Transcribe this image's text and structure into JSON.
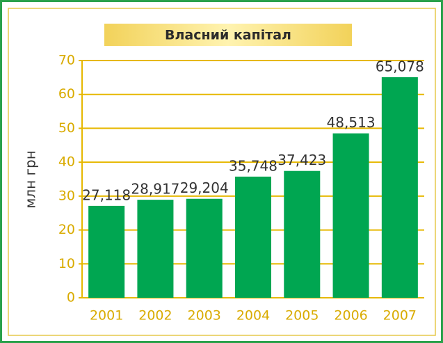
{
  "chart_data": {
    "type": "bar",
    "title": "Власний капітал",
    "y_label": "млн грн",
    "categories": [
      "2001",
      "2002",
      "2003",
      "2004",
      "2005",
      "2006",
      "2007"
    ],
    "values": [
      27.118,
      28.917,
      29.204,
      35.748,
      37.423,
      48.513,
      65.078
    ],
    "value_labels": [
      "27,118",
      "28,917",
      "29,204",
      "35,748",
      "37,423",
      "48,513",
      "65,078"
    ],
    "color": "#00a651",
    "ylim": [
      0,
      70
    ],
    "yticks": [
      0,
      10,
      20,
      30,
      40,
      50,
      60,
      70
    ],
    "grid": true
  }
}
